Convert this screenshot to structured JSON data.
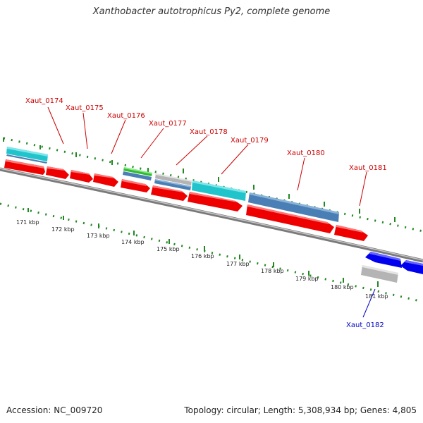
{
  "title": "Xanthobacter autotrophicus Py2, complete genome",
  "accession": "Accession: NC_009720",
  "summary": "Topology: circular; Length: 5,308,934 bp; Genes: 4,805",
  "colors": {
    "forward_label": "#cc0000",
    "reverse_label": "#0000cc",
    "cds_forward": "#ee0000",
    "cds_reverse": "#0000ee",
    "cyan": "#22c4cc",
    "steelblue": "#4a7fb5",
    "green": "#33bb33",
    "grey": "#b4b4b4",
    "backbone": "#8a8a8a",
    "tick": "#228822"
  },
  "scale_labels": [
    "171 kbp",
    "172 kbp",
    "173 kbp",
    "174 kbp",
    "175 kbp",
    "176 kbp",
    "177 kbp",
    "178 kbp",
    "179 kbp",
    "180 kbp",
    "181 kbp"
  ],
  "gene_labels": [
    {
      "text": "Xaut_0174",
      "strand": "forward"
    },
    {
      "text": "Xaut_0175",
      "strand": "forward"
    },
    {
      "text": "Xaut_0176",
      "strand": "forward"
    },
    {
      "text": "Xaut_0177",
      "strand": "forward"
    },
    {
      "text": "Xaut_0178",
      "strand": "forward"
    },
    {
      "text": "Xaut_0179",
      "strand": "forward"
    },
    {
      "text": "Xaut_0180",
      "strand": "forward"
    },
    {
      "text": "Xaut_0181",
      "strand": "forward"
    },
    {
      "text": "Xaut_0182",
      "strand": "reverse"
    }
  ]
}
